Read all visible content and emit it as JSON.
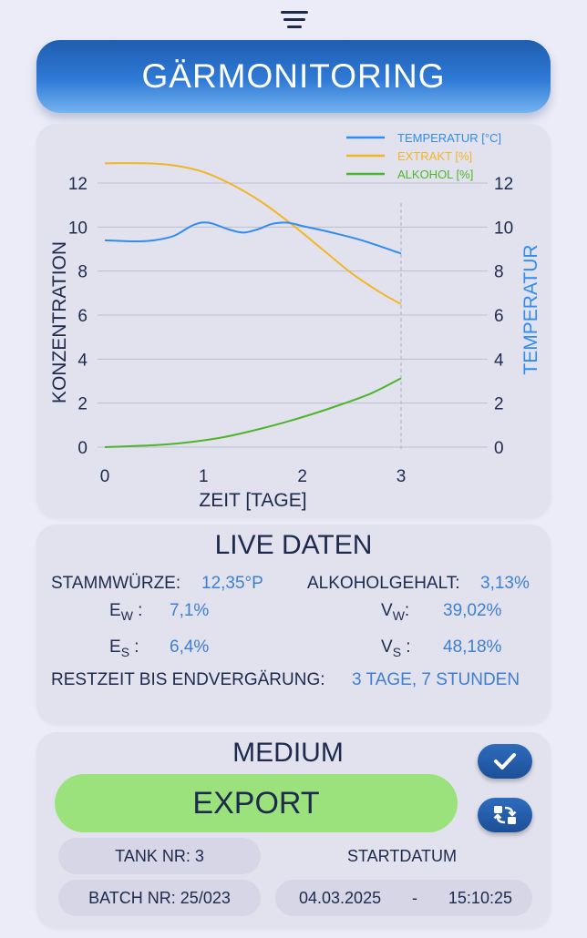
{
  "header": {
    "title": "GÄRMONITORING"
  },
  "chart_data": {
    "type": "line",
    "x_label": "ZEIT [TAGE]",
    "y_left_label": "KONZENTRATION",
    "y_right_label": "TEMPERATUR",
    "x_ticks": [
      0,
      1,
      2,
      3
    ],
    "y_left_ticks": [
      0,
      2,
      4,
      6,
      8,
      10,
      12
    ],
    "y_right_ticks": [
      0,
      2,
      4,
      6,
      8,
      10,
      12
    ],
    "xlim": [
      0,
      3
    ],
    "ylim": [
      0,
      12
    ],
    "grid": true,
    "legend_position": "top-right",
    "current_marker_x": 3,
    "series": [
      {
        "name": "TEMPERATUR [°C]",
        "color": "#2f8cf0",
        "axis": "right",
        "points": [
          [
            0,
            9.4
          ],
          [
            0.3,
            9.35
          ],
          [
            0.5,
            9.4
          ],
          [
            0.7,
            9.6
          ],
          [
            0.9,
            10.1
          ],
          [
            1.05,
            10.2
          ],
          [
            1.25,
            9.9
          ],
          [
            1.4,
            9.75
          ],
          [
            1.55,
            9.9
          ],
          [
            1.7,
            10.15
          ],
          [
            1.85,
            10.2
          ],
          [
            2.0,
            10.05
          ],
          [
            2.3,
            9.75
          ],
          [
            2.6,
            9.4
          ],
          [
            3.0,
            8.8
          ]
        ]
      },
      {
        "name": "EXTRAKT [%]",
        "color": "#f2b625",
        "axis": "left",
        "points": [
          [
            0,
            12.9
          ],
          [
            0.4,
            12.9
          ],
          [
            0.7,
            12.8
          ],
          [
            1.0,
            12.5
          ],
          [
            1.3,
            11.9
          ],
          [
            1.6,
            11.1
          ],
          [
            1.9,
            10.1
          ],
          [
            2.2,
            9.0
          ],
          [
            2.5,
            7.9
          ],
          [
            2.8,
            7.0
          ],
          [
            3.0,
            6.5
          ]
        ]
      },
      {
        "name": "ALKOHOL [%]",
        "color": "#4cb528",
        "axis": "left",
        "points": [
          [
            0,
            0
          ],
          [
            0.3,
            0.05
          ],
          [
            0.6,
            0.12
          ],
          [
            0.9,
            0.25
          ],
          [
            1.2,
            0.45
          ],
          [
            1.5,
            0.75
          ],
          [
            1.8,
            1.1
          ],
          [
            2.1,
            1.5
          ],
          [
            2.4,
            1.95
          ],
          [
            2.7,
            2.45
          ],
          [
            3.0,
            3.13
          ]
        ]
      }
    ]
  },
  "live": {
    "title": "LIVE DATEN",
    "stammwuerze_label": "STAMMWÜRZE:",
    "stammwuerze_value": "12,35°P",
    "alkohol_label": "ALKOHOLGEHALT:",
    "alkohol_value": "3,13%",
    "ew_main": "E",
    "ew_sub": "W",
    "ew_sep": " :",
    "ew_value": "7,1%",
    "es_main": "E",
    "es_sub": "S",
    "es_sep": " :",
    "es_value": "6,4%",
    "vw_main": "V",
    "vw_sub": "W",
    "vw_sep": ":",
    "vw_value": "39,02%",
    "vs_main": "V",
    "vs_sub": "S",
    "vs_sep": " :",
    "vs_value": "48,18%",
    "restzeit_label": "RESTZEIT BIS ENDVERGÄRUNG:",
    "restzeit_value": "3 TAGE,  7 STUNDEN"
  },
  "bottom": {
    "medium_label": "MEDIUM",
    "export_label": "EXPORT",
    "tank": "TANK NR: 3",
    "startdatum_label": "STARTDATUM",
    "batch": "BATCH NR: 25/023",
    "date": "04.03.2025",
    "date_sep": "-",
    "time": "15:10:25"
  },
  "icons": {
    "menu": "menu-icon",
    "confirm": "check-icon",
    "switch": "swap-icon"
  },
  "colors": {
    "accent": "#2f7ad6",
    "value_text": "#3e7fd0",
    "export_button": "#9be27d"
  }
}
